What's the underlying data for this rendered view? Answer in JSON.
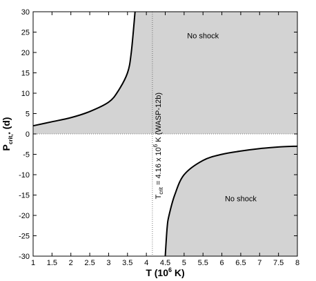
{
  "chart_data": {
    "type": "area",
    "title": "",
    "xlabel": "T (10",
    "xlabel_sup": "6",
    "xlabel_tail": " K)",
    "ylabel": "P",
    "ylabel_sub": "crit,*",
    "ylabel_tail": " (d)",
    "xlim": [
      1,
      8
    ],
    "ylim": [
      -30,
      30
    ],
    "x_ticks": [
      "1",
      "1.5",
      "2",
      "2.5",
      "3",
      "3.5",
      "4",
      "4.5",
      "5",
      "5.5",
      "6",
      "6.5",
      "7",
      "7.5",
      "8"
    ],
    "y_ticks": [
      "30",
      "25",
      "20",
      "15",
      "10",
      "5",
      "0",
      "-5",
      "-10",
      "-15",
      "-20",
      "-25",
      "-30"
    ],
    "tcrit_x": 4.16,
    "tcrit_label": "T",
    "tcrit_label_sub": "crit",
    "tcrit_label_mid": " = 4.16 x 10",
    "tcrit_label_sup": "6",
    "tcrit_label_tail": " K (WASP-12b)",
    "series": [
      {
        "x": [
          1.0,
          1.5,
          2.0,
          2.5,
          3.0,
          3.25,
          3.5,
          3.6,
          3.7
        ],
        "y": [
          2.0,
          3.0,
          4.0,
          5.5,
          7.8,
          10.5,
          15.0,
          20.0,
          30.0
        ]
      },
      {
        "x": [
          4.5,
          4.55,
          4.6,
          4.75,
          5.0,
          5.5,
          6.0,
          6.5,
          7.0,
          7.5,
          8.0
        ],
        "y": [
          -30.0,
          -23.0,
          -20.0,
          -15.0,
          -10.0,
          -6.5,
          -5.0,
          -4.2,
          -3.6,
          -3.2,
          -3.0
        ]
      }
    ],
    "regions": [
      {
        "label": "No shock",
        "x": 5.5,
        "y": 23.5
      },
      {
        "label": "No shock",
        "x": 6.5,
        "y": -16.5
      }
    ],
    "shade_color": "#d3d3d3",
    "curve_color": "#000000",
    "grid": false
  }
}
